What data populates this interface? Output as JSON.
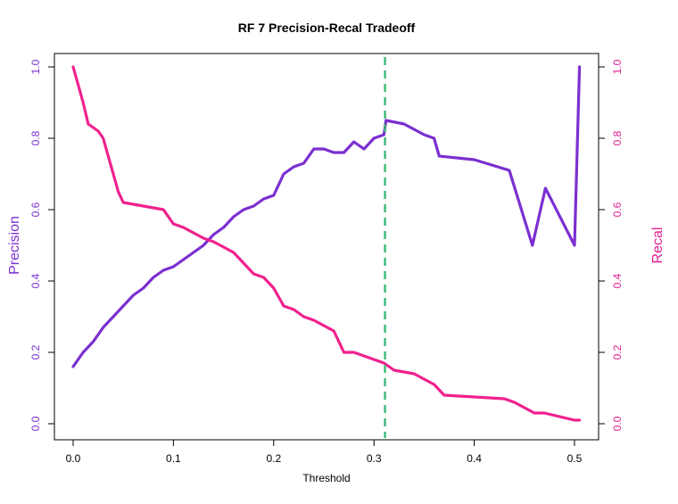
{
  "chart_data": {
    "type": "line",
    "title": "RF 7 Precision-Recal Tradeoff",
    "xlabel": "Threshold",
    "ylabel_left": "Precision",
    "ylabel_right": "Recal",
    "xlim": [
      0,
      0.5
    ],
    "ylim": [
      0,
      1
    ],
    "xticks": [
      "0.0",
      "0.1",
      "0.2",
      "0.3",
      "0.4",
      "0.5"
    ],
    "yticks_left": [
      "0.0",
      "0.2",
      "0.4",
      "0.6",
      "0.8",
      "1.0"
    ],
    "yticks_right": [
      "0.0",
      "0.2",
      "0.4",
      "0.6",
      "0.8",
      "1.0"
    ],
    "threshold_line": 0.311,
    "colors": {
      "precision": "#7b2fd1",
      "recall": "#f0218f",
      "threshold": "#3cb879",
      "left_axis": "#7b2fd1",
      "right_axis": "#e0208f"
    },
    "series": [
      {
        "key": "precision",
        "x": [
          0.0,
          0.01,
          0.02,
          0.03,
          0.04,
          0.05,
          0.06,
          0.07,
          0.08,
          0.09,
          0.1,
          0.11,
          0.12,
          0.13,
          0.14,
          0.15,
          0.16,
          0.17,
          0.18,
          0.19,
          0.2,
          0.21,
          0.22,
          0.23,
          0.24,
          0.25,
          0.26,
          0.27,
          0.28,
          0.29,
          0.3,
          0.31,
          0.312,
          0.33,
          0.35,
          0.36,
          0.365,
          0.4,
          0.435,
          0.458,
          0.471,
          0.5,
          0.505
        ],
        "y": [
          0.16,
          0.2,
          0.23,
          0.27,
          0.3,
          0.33,
          0.36,
          0.38,
          0.41,
          0.43,
          0.44,
          0.46,
          0.48,
          0.5,
          0.53,
          0.55,
          0.58,
          0.6,
          0.61,
          0.63,
          0.64,
          0.7,
          0.72,
          0.73,
          0.77,
          0.77,
          0.76,
          0.76,
          0.79,
          0.77,
          0.8,
          0.81,
          0.85,
          0.84,
          0.81,
          0.8,
          0.75,
          0.74,
          0.71,
          0.5,
          0.66,
          0.5,
          1.0
        ]
      },
      {
        "key": "recall",
        "x": [
          0.0,
          0.005,
          0.01,
          0.015,
          0.025,
          0.03,
          0.035,
          0.04,
          0.045,
          0.05,
          0.07,
          0.09,
          0.1,
          0.11,
          0.13,
          0.14,
          0.16,
          0.17,
          0.18,
          0.19,
          0.2,
          0.21,
          0.22,
          0.23,
          0.24,
          0.26,
          0.27,
          0.28,
          0.29,
          0.3,
          0.31,
          0.32,
          0.34,
          0.36,
          0.37,
          0.43,
          0.44,
          0.46,
          0.47,
          0.5,
          0.505
        ],
        "y": [
          1.0,
          0.95,
          0.9,
          0.84,
          0.82,
          0.8,
          0.75,
          0.7,
          0.65,
          0.62,
          0.61,
          0.6,
          0.56,
          0.55,
          0.52,
          0.51,
          0.48,
          0.45,
          0.42,
          0.41,
          0.38,
          0.33,
          0.32,
          0.3,
          0.29,
          0.26,
          0.2,
          0.2,
          0.19,
          0.18,
          0.17,
          0.15,
          0.14,
          0.11,
          0.08,
          0.07,
          0.06,
          0.03,
          0.03,
          0.01,
          0.01
        ]
      }
    ]
  }
}
